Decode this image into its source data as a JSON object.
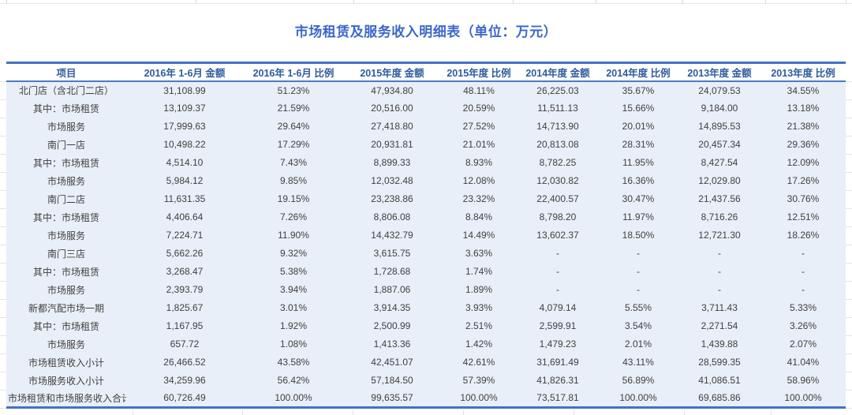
{
  "title": "市场租赁及服务收入明细表（单位：万元）",
  "colors": {
    "accent_border": "#4472C4",
    "header_text": "#2F5B9E",
    "title_text": "#3B67CB",
    "table_background": "#E9EFF8",
    "body_text": "#3F3F3F"
  },
  "table": {
    "columns": [
      "项目",
      "2016年 1-6月 金额",
      "2016年 1-6月 比例",
      "2015年度 金额",
      "2015年度 比例",
      "2014年度 金额",
      "2014年度 比例",
      "2013年度 金额",
      "2013年度 比例"
    ],
    "rows": [
      [
        "北门店（含北门二店）",
        "31,108.99",
        "51.23%",
        "47,934.80",
        "48.11%",
        "26,225.03",
        "35.67%",
        "24,079.53",
        "34.55%"
      ],
      [
        "其中：市场租赁",
        "13,109.37",
        "21.59%",
        "20,516.00",
        "20.59%",
        "11,511.13",
        "15.66%",
        "9,184.00",
        "13.18%"
      ],
      [
        "市场服务",
        "17,999.63",
        "29.64%",
        "27,418.80",
        "27.52%",
        "14,713.90",
        "20.01%",
        "14,895.53",
        "21.38%"
      ],
      [
        "南门一店",
        "10,498.22",
        "17.29%",
        "20,931.81",
        "21.01%",
        "20,813.08",
        "28.31%",
        "20,457.34",
        "29.36%"
      ],
      [
        "其中：市场租赁",
        "4,514.10",
        "7.43%",
        "8,899.33",
        "8.93%",
        "8,782.25",
        "11.95%",
        "8,427.54",
        "12.09%"
      ],
      [
        "市场服务",
        "5,984.12",
        "9.85%",
        "12,032.48",
        "12.08%",
        "12,030.82",
        "16.36%",
        "12,029.80",
        "17.26%"
      ],
      [
        "南门二店",
        "11,631.35",
        "19.15%",
        "23,238.86",
        "23.32%",
        "22,400.57",
        "30.47%",
        "21,437.56",
        "30.76%"
      ],
      [
        "其中：市场租赁",
        "4,406.64",
        "7.26%",
        "8,806.08",
        "8.84%",
        "8,798.20",
        "11.97%",
        "8,716.26",
        "12.51%"
      ],
      [
        "市场服务",
        "7,224.71",
        "11.90%",
        "14,432.79",
        "14.49%",
        "13,602.37",
        "18.50%",
        "12,721.30",
        "18.26%"
      ],
      [
        "南门三店",
        "5,662.26",
        "9.32%",
        "3,615.75",
        "3.63%",
        "-",
        "-",
        "-",
        "-"
      ],
      [
        "其中：市场租赁",
        "3,268.47",
        "5.38%",
        "1,728.68",
        "1.74%",
        "-",
        "-",
        "-",
        "-"
      ],
      [
        "市场服务",
        "2,393.79",
        "3.94%",
        "1,887.06",
        "1.89%",
        "-",
        "-",
        "-",
        "-"
      ],
      [
        "新都汽配市场一期",
        "1,825.67",
        "3.01%",
        "3,914.35",
        "3.93%",
        "4,079.14",
        "5.55%",
        "3,711.43",
        "5.33%"
      ],
      [
        "其中：市场租赁",
        "1,167.95",
        "1.92%",
        "2,500.99",
        "2.51%",
        "2,599.91",
        "3.54%",
        "2,271.54",
        "3.26%"
      ],
      [
        "市场服务",
        "657.72",
        "1.08%",
        "1,413.36",
        "1.42%",
        "1,479.23",
        "2.01%",
        "1,439.88",
        "2.07%"
      ],
      [
        "市场租赁收入小计",
        "26,466.52",
        "43.58%",
        "42,451.07",
        "42.61%",
        "31,691.49",
        "43.11%",
        "28,599.35",
        "41.04%"
      ],
      [
        "市场服务收入小计",
        "34,259.96",
        "56.42%",
        "57,184.50",
        "57.39%",
        "41,826.31",
        "56.89%",
        "41,086.51",
        "58.96%"
      ],
      [
        "市场租赁和市场服务收入合计",
        "60,726.49",
        "100.00%",
        "99,635.57",
        "100.00%",
        "73,517.81",
        "100.00%",
        "69,685.86",
        "100.00%"
      ]
    ]
  }
}
